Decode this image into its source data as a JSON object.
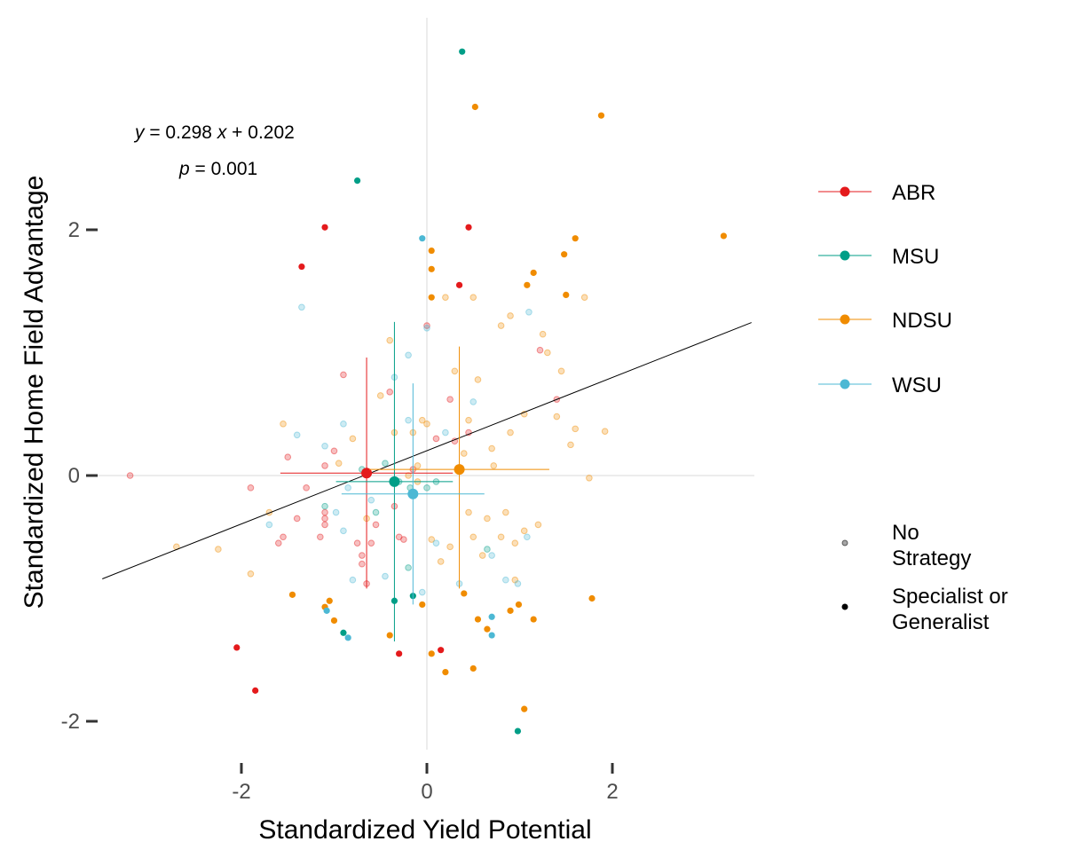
{
  "chart_data": {
    "type": "scatter",
    "xlabel": "Standardized Yield Potential",
    "ylabel": "Standardized Home Field Advantage",
    "xlim": [
      -3.2,
      3.5
    ],
    "ylim": [
      -2.4,
      3.7
    ],
    "x_ticks": [
      "-2",
      "0",
      "2"
    ],
    "y_ticks": [
      "-2",
      "0",
      "2"
    ],
    "x_tick_values": [
      -2,
      0,
      2
    ],
    "y_tick_values": [
      -2,
      0,
      2
    ],
    "grid": false,
    "reference_lines": {
      "x": 0,
      "y": 0
    },
    "regression": {
      "slope": 0.298,
      "intercept": 0.202,
      "x_range": [
        -3.5,
        3.5
      ],
      "equation": {
        "y": "y",
        "eq1": " = 0.298 ",
        "x": "x",
        "eq2": " + 0.202"
      },
      "pvalue": {
        "p": "p",
        "eq": " = 0.001"
      }
    },
    "legend": {
      "placement": "right",
      "colors_title": "",
      "colors": [
        {
          "name": "ABR",
          "color": "#e41a1c"
        },
        {
          "name": "MSU",
          "color": "#009e87"
        },
        {
          "name": "NDSU",
          "color": "#f08c00"
        },
        {
          "name": "WSU",
          "color": "#4cb8d4"
        }
      ],
      "alpha_entries": [
        {
          "line1": "No",
          "line2": "Strategy",
          "opacity": 0.35
        },
        {
          "line1": "Specialist or",
          "line2": "Generalist",
          "opacity": 1.0
        }
      ]
    },
    "summary_points": [
      {
        "name": "ABR",
        "color": "#e41a1c",
        "x": -0.65,
        "y": 0.02,
        "x_lo": -1.58,
        "x_hi": 0.28,
        "y_lo": -0.92,
        "y_hi": 0.96
      },
      {
        "name": "MSU",
        "color": "#009e87",
        "x": -0.35,
        "y": -0.05,
        "x_lo": -0.98,
        "x_hi": 0.28,
        "y_lo": -1.35,
        "y_hi": 1.25
      },
      {
        "name": "NDSU",
        "color": "#f08c00",
        "x": 0.35,
        "y": 0.05,
        "x_lo": -0.62,
        "x_hi": 1.32,
        "y_lo": -0.92,
        "y_hi": 1.05
      },
      {
        "name": "WSU",
        "color": "#4cb8d4",
        "x": -0.15,
        "y": -0.15,
        "x_lo": -0.92,
        "x_hi": 0.62,
        "y_lo": -1.05,
        "y_hi": 0.75
      }
    ],
    "series": [
      {
        "name": "ABR",
        "color": "#e41a1c",
        "strong": [
          [
            -1.1,
            2.02
          ],
          [
            -1.35,
            1.7
          ],
          [
            0.45,
            2.02
          ],
          [
            0.35,
            1.55
          ],
          [
            -2.05,
            -1.4
          ],
          [
            -1.85,
            -1.75
          ],
          [
            -0.3,
            -1.45
          ],
          [
            0.15,
            -1.42
          ]
        ],
        "faint": [
          [
            -3.2,
            0.0
          ],
          [
            -1.9,
            -0.1
          ],
          [
            -1.6,
            -0.55
          ],
          [
            -1.55,
            -0.5
          ],
          [
            -1.5,
            0.15
          ],
          [
            -1.4,
            -0.35
          ],
          [
            -1.3,
            -0.1
          ],
          [
            -1.15,
            -0.5
          ],
          [
            -1.1,
            -0.3
          ],
          [
            -1.1,
            -0.35
          ],
          [
            -1.1,
            -0.4
          ],
          [
            -1.1,
            0.08
          ],
          [
            -1.0,
            0.2
          ],
          [
            -0.9,
            0.82
          ],
          [
            -0.75,
            -0.55
          ],
          [
            -0.7,
            -0.65
          ],
          [
            -0.7,
            -0.72
          ],
          [
            -0.65,
            -0.88
          ],
          [
            -0.6,
            -0.55
          ],
          [
            -0.55,
            -0.4
          ],
          [
            -0.4,
            0.68
          ],
          [
            -0.35,
            -0.25
          ],
          [
            -0.3,
            -0.5
          ],
          [
            -0.25,
            -0.52
          ],
          [
            -0.15,
            0.05
          ],
          [
            -0.15,
            -0.15
          ],
          [
            0.0,
            1.22
          ],
          [
            0.1,
            0.3
          ],
          [
            0.25,
            0.62
          ],
          [
            0.3,
            0.28
          ],
          [
            0.45,
            0.35
          ],
          [
            1.22,
            1.02
          ],
          [
            1.4,
            0.62
          ]
        ]
      },
      {
        "name": "MSU",
        "color": "#009e87",
        "strong": [
          [
            0.38,
            3.45
          ],
          [
            -0.75,
            2.4
          ],
          [
            -0.9,
            -1.28
          ],
          [
            -0.35,
            -1.02
          ],
          [
            -0.15,
            -0.98
          ],
          [
            0.98,
            -2.08
          ]
        ],
        "faint": [
          [
            -1.1,
            -0.25
          ],
          [
            -0.7,
            0.05
          ],
          [
            -0.55,
            -0.3
          ],
          [
            -0.45,
            0.1
          ],
          [
            -0.3,
            -0.05
          ],
          [
            -0.2,
            -0.75
          ],
          [
            -0.18,
            -0.1
          ],
          [
            0.0,
            -0.1
          ],
          [
            0.1,
            -0.05
          ],
          [
            0.65,
            -0.6
          ]
        ]
      },
      {
        "name": "NDSU",
        "color": "#f08c00",
        "strong": [
          [
            0.52,
            3.0
          ],
          [
            1.88,
            2.93
          ],
          [
            3.2,
            1.95
          ],
          [
            1.6,
            1.93
          ],
          [
            1.48,
            1.8
          ],
          [
            0.05,
            1.83
          ],
          [
            0.05,
            1.68
          ],
          [
            1.15,
            1.65
          ],
          [
            1.08,
            1.55
          ],
          [
            0.05,
            1.45
          ],
          [
            1.5,
            1.47
          ],
          [
            -1.45,
            -0.97
          ],
          [
            -1.05,
            -1.02
          ],
          [
            -1.1,
            -1.07
          ],
          [
            -1.0,
            -1.18
          ],
          [
            -0.4,
            -1.3
          ],
          [
            -0.05,
            -1.05
          ],
          [
            0.05,
            -1.45
          ],
          [
            0.2,
            -1.6
          ],
          [
            0.5,
            -1.57
          ],
          [
            0.55,
            -1.17
          ],
          [
            0.65,
            -1.25
          ],
          [
            0.9,
            -1.1
          ],
          [
            0.99,
            -1.05
          ],
          [
            1.15,
            -1.17
          ],
          [
            1.05,
            -1.9
          ],
          [
            1.78,
            -1.0
          ],
          [
            0.4,
            -0.96
          ]
        ],
        "faint": [
          [
            -2.7,
            -0.58
          ],
          [
            -2.25,
            -0.6
          ],
          [
            -1.9,
            -0.8
          ],
          [
            -1.55,
            0.42
          ],
          [
            -1.7,
            -0.3
          ],
          [
            -0.95,
            0.1
          ],
          [
            -0.8,
            0.3
          ],
          [
            -0.5,
            0.65
          ],
          [
            -0.4,
            1.1
          ],
          [
            -0.35,
            0.35
          ],
          [
            -0.15,
            0.35
          ],
          [
            -0.1,
            0.08
          ],
          [
            -0.1,
            -0.05
          ],
          [
            -0.05,
            0.45
          ],
          [
            0.0,
            0.42
          ],
          [
            0.05,
            -0.52
          ],
          [
            0.15,
            -0.7
          ],
          [
            0.25,
            -0.58
          ],
          [
            0.3,
            0.85
          ],
          [
            0.4,
            0.18
          ],
          [
            0.45,
            -0.3
          ],
          [
            0.45,
            0.45
          ],
          [
            0.5,
            -0.5
          ],
          [
            0.55,
            0.78
          ],
          [
            0.6,
            -0.65
          ],
          [
            0.65,
            -0.35
          ],
          [
            0.7,
            0.22
          ],
          [
            0.72,
            0.08
          ],
          [
            0.8,
            1.22
          ],
          [
            0.8,
            -0.5
          ],
          [
            0.85,
            -0.3
          ],
          [
            0.9,
            0.35
          ],
          [
            0.95,
            -0.85
          ],
          [
            0.95,
            -0.55
          ],
          [
            1.05,
            -0.45
          ],
          [
            1.05,
            0.5
          ],
          [
            1.2,
            -0.4
          ],
          [
            1.25,
            1.15
          ],
          [
            1.3,
            1.0
          ],
          [
            1.4,
            0.48
          ],
          [
            1.45,
            0.85
          ],
          [
            1.55,
            0.25
          ],
          [
            1.6,
            0.38
          ],
          [
            1.7,
            1.45
          ],
          [
            1.75,
            -0.02
          ],
          [
            1.92,
            0.36
          ],
          [
            0.2,
            1.45
          ],
          [
            0.5,
            1.45
          ],
          [
            0.9,
            1.3
          ],
          [
            -0.65,
            -0.35
          ],
          [
            -0.2,
            0.0
          ]
        ]
      },
      {
        "name": "WSU",
        "color": "#4cb8d4",
        "strong": [
          [
            -0.05,
            1.93
          ],
          [
            -1.08,
            -1.1
          ],
          [
            -0.85,
            -1.32
          ],
          [
            0.7,
            -1.15
          ],
          [
            0.7,
            -1.3
          ]
        ],
        "faint": [
          [
            -1.35,
            1.37
          ],
          [
            -1.4,
            0.33
          ],
          [
            -1.7,
            -0.4
          ],
          [
            -1.1,
            0.24
          ],
          [
            -0.98,
            -0.3
          ],
          [
            -0.9,
            -0.45
          ],
          [
            -0.85,
            -0.1
          ],
          [
            -0.8,
            -0.85
          ],
          [
            -0.6,
            -0.2
          ],
          [
            -0.45,
            -0.82
          ],
          [
            -0.35,
            0.8
          ],
          [
            -0.2,
            0.98
          ],
          [
            -0.05,
            -0.95
          ],
          [
            0.0,
            1.2
          ],
          [
            0.1,
            -0.55
          ],
          [
            0.2,
            0.35
          ],
          [
            0.35,
            -0.88
          ],
          [
            0.5,
            0.6
          ],
          [
            0.7,
            -0.65
          ],
          [
            0.85,
            -0.85
          ],
          [
            0.98,
            -0.88
          ],
          [
            1.08,
            -0.5
          ],
          [
            1.1,
            1.33
          ],
          [
            -0.9,
            0.42
          ],
          [
            -0.2,
            0.45
          ]
        ]
      }
    ]
  }
}
